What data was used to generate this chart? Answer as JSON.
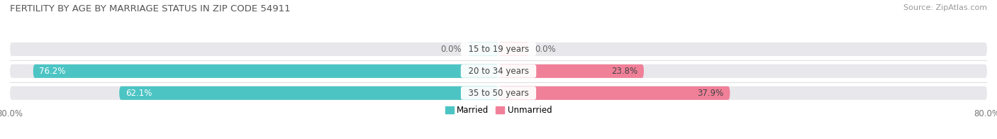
{
  "title": "FERTILITY BY AGE BY MARRIAGE STATUS IN ZIP CODE 54911",
  "source": "Source: ZipAtlas.com",
  "categories": [
    "15 to 19 years",
    "20 to 34 years",
    "35 to 50 years"
  ],
  "married_values": [
    0.0,
    76.2,
    62.1
  ],
  "unmarried_values": [
    0.0,
    23.8,
    37.9
  ],
  "married_color": "#4DC4C4",
  "unmarried_color": "#F08098",
  "bar_bg_color": "#E8E8EC",
  "background_color": "#FFFFFF",
  "x_left_label": "80.0%",
  "x_right_label": "80.0%",
  "axis_max": 80.0,
  "bar_height": 0.62,
  "title_fontsize": 9.5,
  "label_fontsize": 8.5,
  "tick_fontsize": 8.5,
  "source_fontsize": 8,
  "zero_bar_width": 5.0
}
